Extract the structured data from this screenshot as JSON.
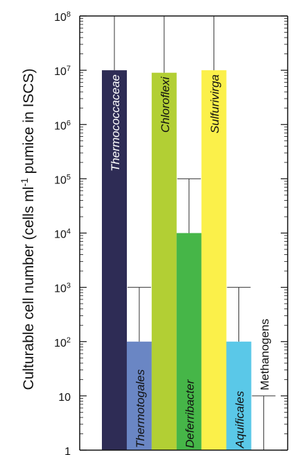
{
  "chart_data": {
    "type": "bar",
    "scale": "log",
    "ylim": [
      1,
      100000000
    ],
    "ylabel_main": "Culturable cell number (cells ml",
    "ylabel_sup": "-1",
    "ylabel_tail": " pumice in ISCS)",
    "yticks": [
      {
        "value": 1,
        "base": "1",
        "exp": ""
      },
      {
        "value": 10,
        "base": "10",
        "exp": ""
      },
      {
        "value": 100,
        "base": "10",
        "exp": "2"
      },
      {
        "value": 1000,
        "base": "10",
        "exp": "3"
      },
      {
        "value": 10000,
        "base": "10",
        "exp": "4"
      },
      {
        "value": 100000,
        "base": "10",
        "exp": "5"
      },
      {
        "value": 1000000,
        "base": "10",
        "exp": "6"
      },
      {
        "value": 10000000,
        "base": "10",
        "exp": "7"
      },
      {
        "value": 100000000,
        "base": "10",
        "exp": "8"
      }
    ],
    "categories": [
      "Thermococcaceae",
      "Thermotogales",
      "Chloroflexi",
      "Deferribacter",
      "Sulfurivirga",
      "Aquificales",
      "Methanogens"
    ],
    "values": [
      10000000,
      100,
      9000000,
      10000,
      10000000,
      100,
      1
    ],
    "error_upper": [
      100000000,
      1000,
      100000000,
      100000,
      100000000,
      1000,
      10
    ],
    "colors": [
      "#2e2c55",
      "#6a86c4",
      "#b2cf34",
      "#46b648",
      "#fbf04a",
      "#5ac8e8",
      "#ffffff"
    ],
    "label_colors": [
      "#ffffff",
      "#111111",
      "#111111",
      "#111111",
      "#111111",
      "#111111",
      "#111111"
    ],
    "label_italic": [
      true,
      true,
      true,
      true,
      true,
      true,
      false
    ],
    "grid": false
  }
}
